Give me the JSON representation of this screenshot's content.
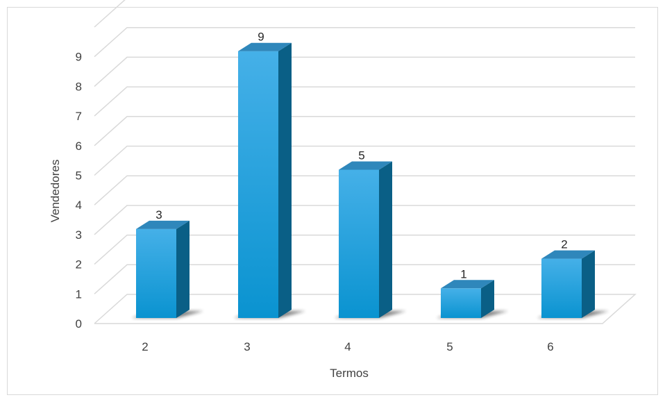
{
  "chart_data": {
    "type": "bar",
    "style": "3d-column",
    "categories": [
      "2",
      "3",
      "4",
      "5",
      "6"
    ],
    "values": [
      3,
      9,
      5,
      1,
      2
    ],
    "xlabel": "Termos",
    "ylabel": "Vendedores",
    "ylim": [
      0,
      9
    ],
    "yticks": [
      0,
      1,
      2,
      3,
      4,
      5,
      6,
      7,
      8,
      9
    ],
    "grid": true,
    "data_labels": true,
    "colors": {
      "bar_front_top": "#45b0e8",
      "bar_front_bottom": "#0a93d0",
      "bar_side": "#0a5f86",
      "bar_top": "#2f87bb",
      "grid": "#d9d9d9"
    }
  }
}
